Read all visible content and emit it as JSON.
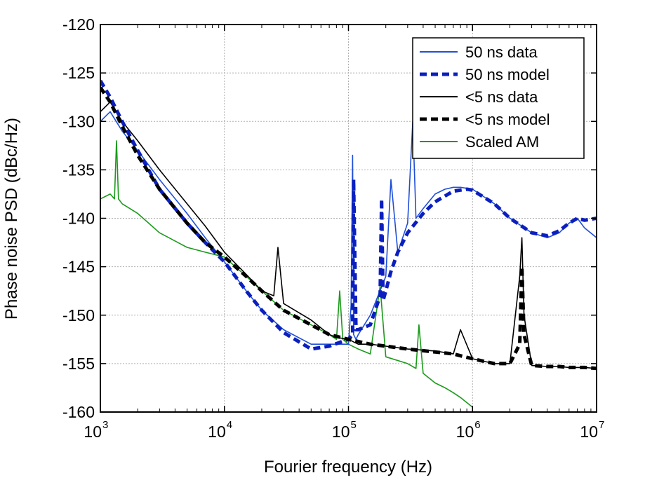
{
  "chart_data": {
    "type": "line",
    "title": "",
    "xlabel": "Fourier frequency (Hz)",
    "ylabel": "Phase noise PSD (dBc/Hz)",
    "x_scale": "log",
    "xlim": [
      1000,
      10000000
    ],
    "ylim": [
      -160,
      -120
    ],
    "x_ticks": [
      {
        "base": "10",
        "exp": "3",
        "value": 1000
      },
      {
        "base": "10",
        "exp": "4",
        "value": 10000
      },
      {
        "base": "10",
        "exp": "5",
        "value": 100000
      },
      {
        "base": "10",
        "exp": "6",
        "value": 1000000
      },
      {
        "base": "10",
        "exp": "7",
        "value": 10000000
      }
    ],
    "y_ticks": [
      "-120",
      "-125",
      "-130",
      "-135",
      "-140",
      "-145",
      "-150",
      "-155",
      "-160"
    ],
    "grid": true,
    "legend_position": "top-right",
    "series": [
      {
        "name": "50 ns data",
        "color": "#1f4fd8",
        "style": "solid",
        "x": [
          1000,
          1200,
          1500,
          2000,
          3000,
          5000,
          7000,
          10000,
          15000,
          20000,
          30000,
          50000,
          70000,
          100000,
          105000,
          108000,
          110000,
          115000,
          120000,
          150000,
          200000,
          220000,
          250000,
          300000,
          330000,
          350000,
          400000,
          500000,
          600000,
          700000,
          800000,
          1000000,
          1500000,
          2000000,
          3000000,
          4000000,
          5000000,
          6000000,
          7000000,
          8000000,
          10000000
        ],
        "y": [
          -130,
          -129,
          -131,
          -133,
          -136,
          -139.5,
          -142,
          -144.5,
          -147.5,
          -149.5,
          -151.5,
          -153,
          -153,
          -153,
          -149,
          -133.5,
          -152,
          -152.5,
          -152,
          -150,
          -146,
          -136,
          -143.5,
          -140.5,
          -130,
          -140,
          -139,
          -137.5,
          -137,
          -136.8,
          -136.8,
          -137,
          -138.5,
          -140,
          -141.5,
          -142,
          -141.5,
          -140.5,
          -140,
          -141,
          -142
        ]
      },
      {
        "name": "50 ns model",
        "color": "#0b1fbf",
        "style": "dashed",
        "x": [
          1000,
          1200,
          1500,
          2000,
          3000,
          5000,
          7000,
          10000,
          15000,
          20000,
          30000,
          50000,
          70000,
          100000,
          108000,
          110000,
          115000,
          120000,
          150000,
          180000,
          185000,
          190000,
          200000,
          220000,
          250000,
          300000,
          400000,
          500000,
          700000,
          900000,
          1000000,
          1500000,
          2000000,
          3000000,
          4000000,
          5000000,
          6000000,
          7000000,
          8000000,
          10000000
        ],
        "y": [
          -125.8,
          -127.5,
          -130,
          -133,
          -137,
          -140.5,
          -142.5,
          -144.5,
          -147.5,
          -149.5,
          -151.8,
          -153.5,
          -153.2,
          -152.5,
          -152,
          -136,
          -151.5,
          -151.5,
          -151,
          -148,
          -138,
          -148.5,
          -147.5,
          -145.5,
          -143.5,
          -141.5,
          -139.5,
          -138.3,
          -137.2,
          -137,
          -137.1,
          -138.5,
          -140,
          -141.5,
          -141.8,
          -141.3,
          -140.5,
          -140,
          -140.2,
          -140
        ]
      },
      {
        "name": "<5 ns data",
        "color": "#000000",
        "style": "solid",
        "x": [
          1000,
          1200,
          1500,
          2000,
          3000,
          5000,
          7000,
          10000,
          15000,
          20000,
          25000,
          27000,
          30000,
          50000,
          70000,
          80000,
          100000,
          120000,
          150000,
          200000,
          300000,
          500000,
          700000,
          800000,
          1000000,
          1500000,
          2000000,
          2400000,
          2500000,
          2600000,
          3000000,
          4000000,
          5000000,
          6000000,
          7000000,
          8000000,
          10000000
        ],
        "y": [
          -129,
          -128,
          -130,
          -132,
          -135,
          -138.5,
          -140.8,
          -143.5,
          -145.8,
          -147.5,
          -148,
          -143,
          -148.8,
          -150.5,
          -152,
          -152.3,
          -152.5,
          -153,
          -153,
          -153.2,
          -153.5,
          -153.7,
          -154,
          -151.5,
          -154.5,
          -155,
          -155,
          -146,
          -142,
          -150,
          -155.2,
          -155.3,
          -155.3,
          -155.4,
          -155.4,
          -155.4,
          -155.5
        ]
      },
      {
        "name": "<5 ns model",
        "color": "#000000",
        "style": "dashed",
        "x": [
          1000,
          1200,
          1500,
          2000,
          3000,
          5000,
          7000,
          10000,
          15000,
          20000,
          30000,
          50000,
          70000,
          100000,
          150000,
          200000,
          300000,
          500000,
          700000,
          1000000,
          1500000,
          2000000,
          2400000,
          2500000,
          2600000,
          3000000,
          4000000,
          5000000,
          6000000,
          7000000,
          8000000,
          10000000
        ],
        "y": [
          -126.5,
          -128,
          -130.5,
          -133.5,
          -137,
          -140.5,
          -142.5,
          -144,
          -146,
          -147.5,
          -149.5,
          -151,
          -152,
          -152.5,
          -153,
          -153.2,
          -153.5,
          -153.8,
          -154,
          -154.5,
          -155,
          -155,
          -153,
          -145,
          -152,
          -155.2,
          -155.3,
          -155.3,
          -155.4,
          -155.4,
          -155.4,
          -155.5
        ]
      },
      {
        "name": "Scaled AM",
        "color": "#1a9a1a",
        "style": "solid",
        "x": [
          1000,
          1200,
          1300,
          1350,
          1400,
          1500,
          2000,
          3000,
          5000,
          7000,
          10000,
          15000,
          20000,
          30000,
          50000,
          70000,
          80000,
          85000,
          90000,
          100000,
          120000,
          150000,
          180000,
          200000,
          300000,
          350000,
          370000,
          400000,
          500000,
          600000,
          700000,
          800000,
          1000000
        ],
        "y": [
          -138,
          -137.5,
          -138,
          -132,
          -138,
          -138.5,
          -139.5,
          -141.5,
          -143,
          -143.5,
          -144,
          -146,
          -147.5,
          -149.5,
          -151,
          -152,
          -152.5,
          -147.5,
          -152.5,
          -153,
          -153.5,
          -154,
          -147,
          -154.3,
          -155,
          -155.5,
          -151,
          -156,
          -157,
          -157.5,
          -158,
          -158.5,
          -159.5
        ]
      }
    ]
  }
}
